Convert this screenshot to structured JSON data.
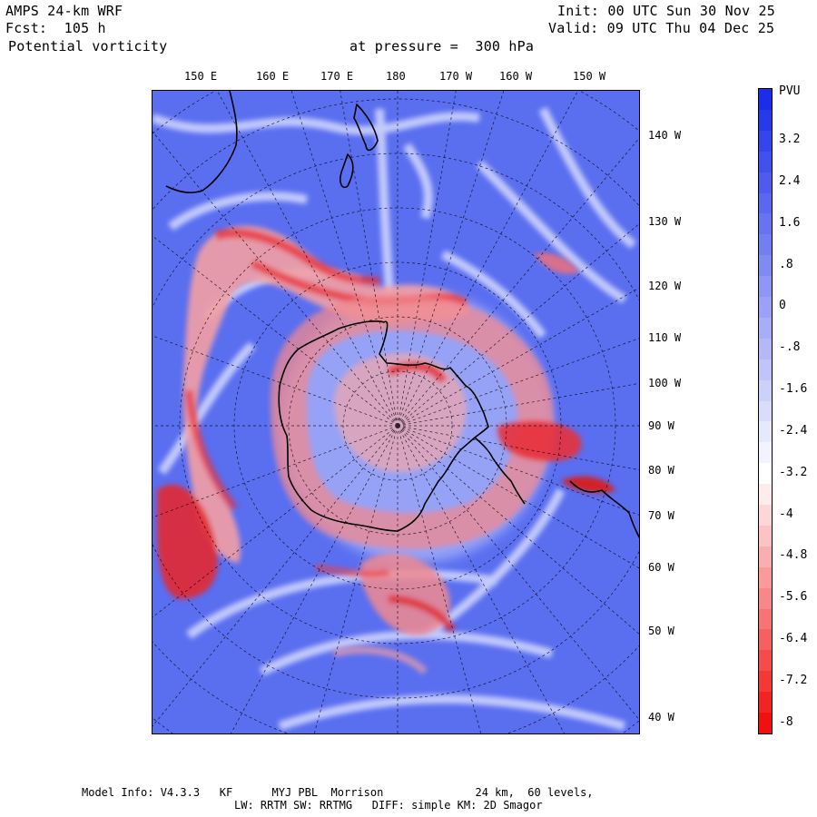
{
  "header": {
    "model": "AMPS 24-km WRF",
    "forecast": "Fcst:  105 h",
    "field": "Potential vorticity",
    "pressure": "at pressure =  300 hPa",
    "init": "Init: 00 UTC Sun 30 Nov 25",
    "valid": "Valid: 09 UTC Thu 04 Dec 25"
  },
  "map": {
    "top_longitude_labels": [
      "150 E",
      "160 E",
      "170 E",
      "180",
      "170 W",
      "160 W",
      "150 W"
    ],
    "right_longitude_labels": [
      "140 W",
      "130 W",
      "120 W",
      "110 W",
      "100 W",
      "90 W",
      "80 W",
      "70 W",
      "60 W",
      "50 W",
      "40 W"
    ],
    "colors": {
      "background_blue": "#5a6ef0",
      "positive_red": "#e8202a",
      "coast": "#000000",
      "grid": "#000000"
    }
  },
  "colorbar": {
    "unit": "PVU",
    "tick_labels": [
      "3.2",
      "2.4",
      "1.6",
      ".8",
      "0",
      "-.8",
      "-1.6",
      "-2.4",
      "-3.2",
      "-4",
      "-4.8",
      "-5.6",
      "-6.4",
      "-7.2",
      "-8"
    ],
    "levels": [
      "4",
      "3.6",
      "3.2",
      "2.8",
      "2.4",
      "2",
      "1.6",
      "1.2",
      ".8",
      ".4",
      "0",
      "-.4",
      "-.8",
      "-1.2",
      "-1.6",
      "-2",
      "-2.4",
      "-2.8",
      "-3.2",
      "-3.6",
      "-4",
      "-4.4",
      "-4.8",
      "-5.2",
      "-5.6",
      "-6",
      "-6.4",
      "-6.8",
      "-7.2",
      "-7.6",
      "-8"
    ],
    "top_color": "#1a2ee8",
    "bottom_color": "#f01010"
  },
  "footer": {
    "line1": "Model Info: V4.3.3   KF      MYJ PBL  Morrison              24 km,  60 levels,",
    "line2": "LW: RRTM SW: RRTMG   DIFF: simple KM: 2D Smagor"
  }
}
